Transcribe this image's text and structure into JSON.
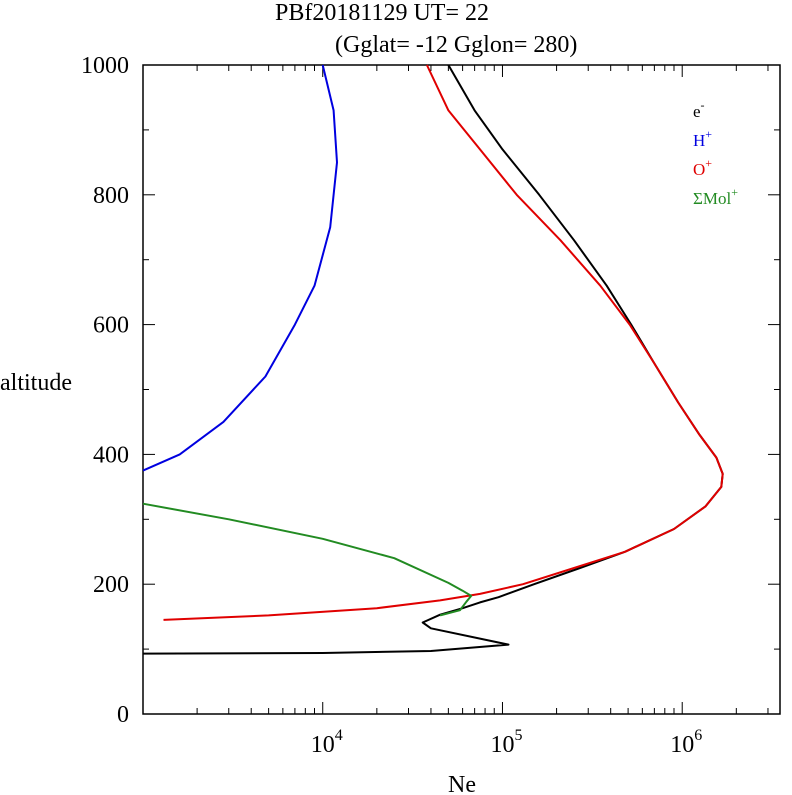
{
  "chart_data": {
    "type": "line",
    "title": "PBf20181129   UT=  22",
    "subtitle": "(Gglat= -12   Gglon=  280)",
    "xlabel": "Ne",
    "ylabel": "altitude",
    "xscale": "log",
    "xlim": [
      1000,
      3500000
    ],
    "ylim": [
      0,
      1000
    ],
    "y_ticks": [
      "0",
      "200",
      "400",
      "600",
      "800",
      "1000"
    ],
    "x_ticks": [
      {
        "base": "10",
        "exp": "4",
        "value": 10000
      },
      {
        "base": "10",
        "exp": "5",
        "value": 100000
      },
      {
        "base": "10",
        "exp": "6",
        "value": 1000000
      }
    ],
    "legend_position": "top-right",
    "series": [
      {
        "name": "e",
        "sup": "-",
        "color": "#000000",
        "points": [
          [
            1000,
            93
          ],
          [
            10000,
            94
          ],
          [
            40000,
            97
          ],
          [
            108000,
            107
          ],
          [
            40000,
            132
          ],
          [
            36000,
            141
          ],
          [
            45000,
            153
          ],
          [
            60000,
            163
          ],
          [
            75000,
            172
          ],
          [
            95000,
            180
          ],
          [
            150000,
            200
          ],
          [
            270000,
            225
          ],
          [
            480000,
            250
          ],
          [
            900000,
            285
          ],
          [
            1350000,
            320
          ],
          [
            1650000,
            350
          ],
          [
            1680000,
            370
          ],
          [
            1550000,
            395
          ],
          [
            1250000,
            430
          ],
          [
            950000,
            480
          ],
          [
            700000,
            540
          ],
          [
            520000,
            600
          ],
          [
            380000,
            660
          ],
          [
            250000,
            730
          ],
          [
            160000,
            800
          ],
          [
            100000,
            870
          ],
          [
            70000,
            930
          ],
          [
            50000,
            1000
          ]
        ]
      },
      {
        "name": "H",
        "sup": "+",
        "color": "#0000e0",
        "points": [
          [
            1000,
            375
          ],
          [
            1600,
            400
          ],
          [
            2800,
            450
          ],
          [
            4800,
            520
          ],
          [
            7000,
            600
          ],
          [
            9000,
            660
          ],
          [
            11000,
            750
          ],
          [
            12000,
            850
          ],
          [
            11500,
            930
          ],
          [
            10000,
            1000
          ]
        ]
      },
      {
        "name": "O",
        "sup": "+",
        "color": "#e00000",
        "points": [
          [
            1300,
            145
          ],
          [
            5000,
            152
          ],
          [
            20000,
            163
          ],
          [
            45000,
            175
          ],
          [
            75000,
            185
          ],
          [
            130000,
            200
          ],
          [
            250000,
            225
          ],
          [
            480000,
            250
          ],
          [
            900000,
            285
          ],
          [
            1350000,
            320
          ],
          [
            1650000,
            350
          ],
          [
            1680000,
            370
          ],
          [
            1550000,
            395
          ],
          [
            1250000,
            430
          ],
          [
            950000,
            480
          ],
          [
            700000,
            540
          ],
          [
            510000,
            600
          ],
          [
            350000,
            660
          ],
          [
            210000,
            730
          ],
          [
            120000,
            800
          ],
          [
            75000,
            870
          ],
          [
            50000,
            930
          ],
          [
            38000,
            1000
          ]
        ]
      },
      {
        "name": "ΣMol",
        "sup": "+",
        "color": "#228b22",
        "points": [
          [
            1000,
            324
          ],
          [
            3000,
            300
          ],
          [
            10000,
            270
          ],
          [
            25000,
            240
          ],
          [
            50000,
            202
          ],
          [
            60000,
            190
          ],
          [
            67000,
            182
          ],
          [
            63000,
            173
          ],
          [
            58000,
            160
          ],
          [
            45000,
            152
          ]
        ]
      }
    ]
  }
}
